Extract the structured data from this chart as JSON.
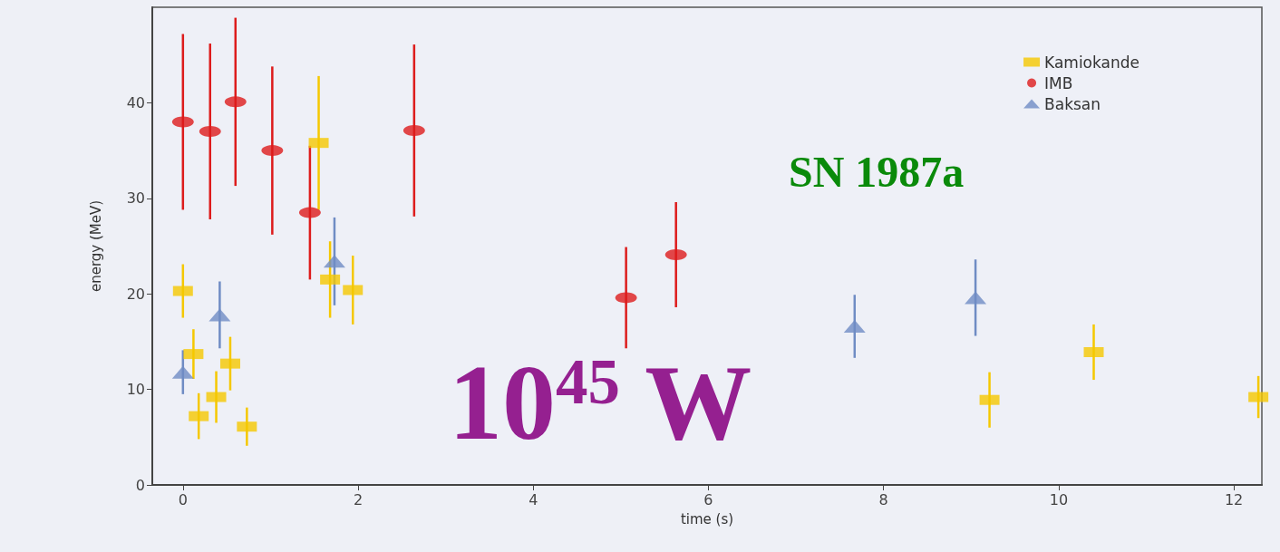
{
  "chart_data": {
    "type": "scatter",
    "xlabel": "time (s)",
    "ylabel": "energy (MeV)",
    "annotations": [
      "SN 1987a",
      "10$^{45}$ W"
    ],
    "xlim": [
      -0.35,
      12.32
    ],
    "xticks": [
      0,
      2,
      4,
      6,
      8,
      10,
      12
    ],
    "ylim": [
      0,
      50
    ],
    "yticks": [
      0,
      10,
      20,
      30,
      40
    ],
    "grid": false,
    "legend": "top right",
    "series": [
      {
        "name": "Kamiokande",
        "color": "#f5c800",
        "marker": "square",
        "x": [
          0,
          0.12,
          0.18,
          0.38,
          0.54,
          0.73,
          1.55,
          1.68,
          1.94,
          9.21,
          10.4,
          12.28
        ],
        "values": [
          20.3,
          13.7,
          7.2,
          9.2,
          12.7,
          6.1,
          35.8,
          21.5,
          20.4,
          8.9,
          13.9,
          9.2
        ],
        "errors": [
          2.8,
          2.6,
          2.4,
          2.7,
          2.8,
          2,
          7,
          4,
          3.6,
          2.9,
          2.9,
          2.2
        ]
      },
      {
        "name": "IMB",
        "color": "#dd1c1c",
        "marker": "circle",
        "x": [
          0,
          0.31,
          0.6,
          1.02,
          1.45,
          2.64,
          5.06,
          5.63
        ],
        "values": [
          38,
          37,
          40.1,
          35,
          28.5,
          37.1,
          19.6,
          24.1
        ],
        "errors": [
          9.2,
          9.2,
          8.8,
          8.8,
          7,
          9,
          5.3,
          5.5
        ]
      },
      {
        "name": "Baksan",
        "color": "#6f8cc4",
        "marker": "triangle",
        "x": [
          0,
          0.42,
          1.73,
          7.67,
          9.05
        ],
        "values": [
          11.8,
          17.8,
          23.4,
          16.6,
          19.6
        ],
        "errors": [
          2.3,
          3.5,
          4.6,
          3.3,
          4
        ]
      }
    ]
  }
}
